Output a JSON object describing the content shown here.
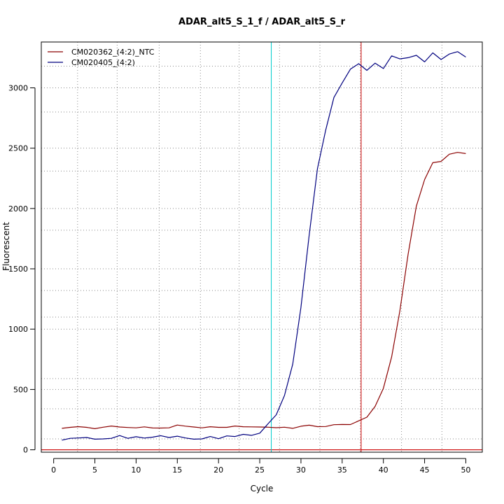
{
  "chart_data": {
    "type": "line",
    "title": "ADAR_alt5_S_1_f / ADAR_alt5_S_r",
    "xlabel": "Cycle",
    "ylabel": "Fluorescent",
    "xlim": [
      -1.5,
      52
    ],
    "ylim": [
      -20,
      3380
    ],
    "x_ticks": [
      0,
      5,
      10,
      15,
      20,
      25,
      30,
      35,
      40,
      45,
      50
    ],
    "y_ticks": [
      0,
      500,
      1000,
      1500,
      2000,
      2500,
      3000
    ],
    "grid": true,
    "legend_position": "top-left",
    "x": [
      1,
      2,
      3,
      4,
      5,
      6,
      7,
      8,
      9,
      10,
      11,
      12,
      13,
      14,
      15,
      16,
      17,
      18,
      19,
      20,
      21,
      22,
      23,
      24,
      25,
      26,
      27,
      28,
      29,
      30,
      31,
      32,
      33,
      34,
      35,
      36,
      37,
      38,
      39,
      40,
      41,
      42,
      43,
      44,
      45,
      46,
      47,
      48,
      49,
      50
    ],
    "series": [
      {
        "name": "CM020362_(4:2)_NTC",
        "color": "#8b0000",
        "values": [
          178,
          186,
          192,
          186,
          175,
          187,
          197,
          189,
          185,
          182,
          190,
          181,
          180,
          182,
          205,
          196,
          189,
          182,
          191,
          186,
          186,
          197,
          191,
          190,
          189,
          187,
          183,
          187,
          178,
          195,
          204,
          192,
          193,
          208,
          210,
          209,
          240,
          270,
          360,
          510,
          770,
          1150,
          1620,
          2020,
          2240,
          2380,
          2390,
          2450,
          2465,
          2455
        ]
      },
      {
        "name": "CM020405_(4:2)",
        "color": "#00007f",
        "values": [
          80,
          95,
          98,
          102,
          88,
          90,
          95,
          118,
          95,
          108,
          97,
          105,
          117,
          102,
          113,
          98,
          88,
          90,
          110,
          92,
          115,
          110,
          128,
          120,
          138,
          215,
          290,
          450,
          710,
          1180,
          1780,
          2330,
          2650,
          2920,
          3040,
          3155,
          3200,
          3145,
          3205,
          3160,
          3265,
          3240,
          3250,
          3270,
          3215,
          3290,
          3235,
          3280,
          3300,
          3255
        ]
      }
    ],
    "vertical_grid_lines": [
      2.9,
      7.7,
      12.8,
      17.8,
      22.5,
      27.4,
      32.3,
      37.2,
      42.2,
      47.1
    ],
    "horizontal_grid_lines": [
      90,
      340,
      500,
      1000,
      1500,
      2000,
      2500,
      3000,
      1320,
      1820,
      2310,
      2800,
      3180,
      590,
      1100
    ],
    "threshold_lines": [
      {
        "orientation": "horizontal",
        "value": 0,
        "color": "#cc0000"
      },
      {
        "orientation": "vertical",
        "value": 26.4,
        "color": "#00cccc"
      },
      {
        "orientation": "vertical",
        "value": 37.3,
        "color": "#cc0000"
      }
    ]
  }
}
